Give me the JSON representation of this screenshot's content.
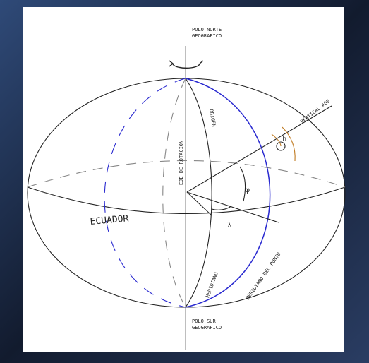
{
  "north_pole": [
    "POLO NORTE",
    "GEOGRAFICO"
  ],
  "south_pole": [
    "POLO SUR",
    "GEOGRAFICO"
  ],
  "axis_label": "EJE DE ROTACION",
  "origin_label": "ORIGEN",
  "vertical_label": "VERTICAL AGS",
  "point_label": "h",
  "latitude_symbol": "φ",
  "longitude_symbol": "λ",
  "equator_label": "ECUADOR",
  "meridian_label": "MERIDIANO",
  "point_meridian_label": "MERIDIANO DEL PUNTO"
}
